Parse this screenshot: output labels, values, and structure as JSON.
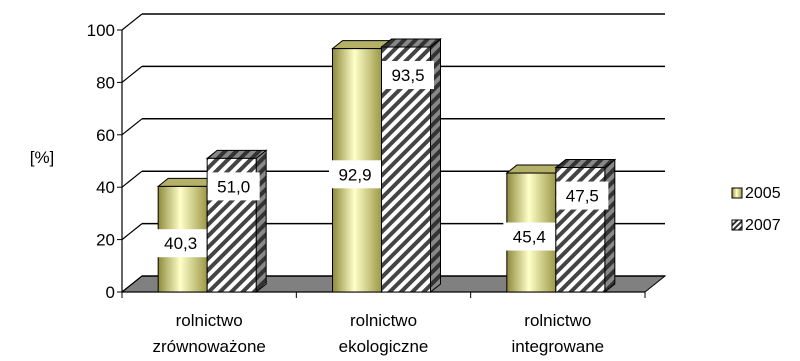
{
  "chart_data": {
    "type": "bar",
    "title": "",
    "xlabel": "",
    "ylabel": "[%]",
    "ylim": [
      0,
      100
    ],
    "yticks": [
      0,
      20,
      40,
      60,
      80,
      100
    ],
    "categories": [
      [
        "rolnictwo",
        "zrównoważone"
      ],
      [
        "rolnictwo",
        "ekologiczne"
      ],
      [
        "rolnictwo",
        "integrowane"
      ]
    ],
    "series": [
      {
        "name": "2005",
        "values": [
          40.3,
          92.9,
          45.4
        ],
        "labels": [
          "40,3",
          "92,9",
          "45,4"
        ],
        "fill": "gradient-olive",
        "color": "#a8a85a"
      },
      {
        "name": "2007",
        "values": [
          51.0,
          93.5,
          47.5
        ],
        "labels": [
          "51,0",
          "93,5",
          "47,5"
        ],
        "fill": "hatch",
        "color": "#555555"
      }
    ],
    "grid": true,
    "legend": "right"
  }
}
